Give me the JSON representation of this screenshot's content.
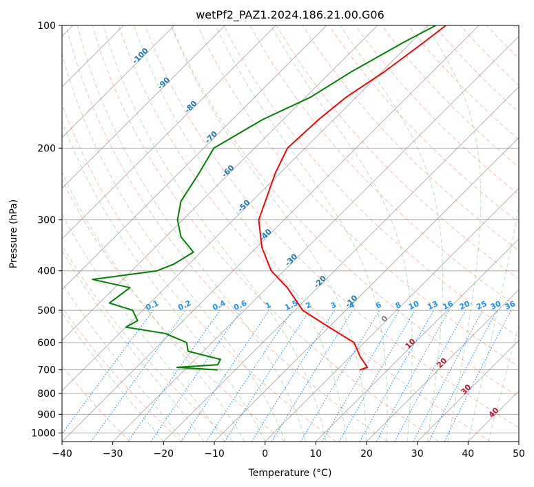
{
  "chart_data": {
    "type": "line",
    "title": "wetPf2_PAZ1.2024.186.21.00.G06",
    "xlabel": "Temperature (°C)",
    "ylabel": "Pressure (hPa)",
    "xlim": [
      -40,
      50
    ],
    "ylim": [
      1050,
      100
    ],
    "y_scale": "log",
    "grid": true,
    "x_ticks": [
      -40,
      -30,
      -20,
      -10,
      0,
      10,
      20,
      30,
      40,
      50
    ],
    "y_ticks": [
      100,
      200,
      300,
      400,
      500,
      600,
      700,
      800,
      900,
      1000
    ],
    "series": [
      {
        "role": "temperature",
        "color": "#ff0000",
        "points": [
          [
            -46.5,
            100
          ],
          [
            -47.5,
            110
          ],
          [
            -49.5,
            130
          ],
          [
            -52,
            150
          ],
          [
            -53,
            170
          ],
          [
            -53.5,
            200
          ],
          [
            -51,
            230
          ],
          [
            -45,
            300
          ],
          [
            -39,
            350
          ],
          [
            -32.5,
            400
          ],
          [
            -26,
            440
          ],
          [
            -18.5,
            500
          ],
          [
            -10,
            550
          ],
          [
            -2,
            600
          ],
          [
            2,
            650
          ],
          [
            5.5,
            690
          ],
          [
            4.5,
            700
          ]
        ]
      },
      {
        "role": "dewpoint",
        "color": "#008000",
        "points": [
          [
            -48.5,
            100
          ],
          [
            -51.5,
            110
          ],
          [
            -56,
            130
          ],
          [
            -59,
            150
          ],
          [
            -64,
            170
          ],
          [
            -68,
            200
          ],
          [
            -66,
            230
          ],
          [
            -64,
            270
          ],
          [
            -61,
            300
          ],
          [
            -57,
            330
          ],
          [
            -51.5,
            360
          ],
          [
            -53,
            385
          ],
          [
            -55,
            400
          ],
          [
            -66,
            420
          ],
          [
            -57,
            440
          ],
          [
            -58,
            480
          ],
          [
            -52,
            500
          ],
          [
            -49,
            530
          ],
          [
            -50,
            550
          ],
          [
            -41,
            570
          ],
          [
            -35,
            600
          ],
          [
            -33,
            630
          ],
          [
            -25,
            660
          ],
          [
            -24.5,
            680
          ],
          [
            -32,
            690
          ],
          [
            -23.5,
            700
          ]
        ]
      }
    ],
    "mixing_ratio_labels": [
      "0.1",
      "0.2",
      "0.4",
      "0.6",
      "1",
      "1.5",
      "2",
      "3",
      "4",
      "6",
      "8",
      "10",
      "13",
      "16",
      "20",
      "25",
      "30",
      "36"
    ],
    "mixing_ratio_values": [
      0.1,
      0.2,
      0.4,
      0.6,
      1,
      1.5,
      2,
      3,
      4,
      6,
      8,
      10,
      13,
      16,
      20,
      25,
      30,
      36
    ],
    "moist_adiabat_labels": [
      {
        "text": "-100",
        "temp": -100,
        "p": 120
      },
      {
        "text": "-90",
        "temp": -90,
        "p": 140
      },
      {
        "text": "-80",
        "temp": -80,
        "p": 160
      },
      {
        "text": "-70",
        "temp": -70,
        "p": 190
      },
      {
        "text": "-60",
        "temp": -60,
        "p": 230
      },
      {
        "text": "-50",
        "temp": -50,
        "p": 280
      },
      {
        "text": "-40",
        "temp": -40,
        "p": 330
      },
      {
        "text": "-30",
        "temp": -30,
        "p": 380
      },
      {
        "text": "-20",
        "temp": -20,
        "p": 430
      },
      {
        "text": "-10",
        "temp": -10,
        "p": 480
      },
      {
        "text": "0",
        "temp": 0,
        "p": 530
      },
      {
        "text": "10",
        "temp": 10,
        "p": 610
      },
      {
        "text": "20",
        "temp": 20,
        "p": 680
      },
      {
        "text": "30",
        "temp": 30,
        "p": 790
      },
      {
        "text": "40",
        "temp": 40,
        "p": 900
      }
    ],
    "colors": {
      "temperature": "#ff0000",
      "dewpoint": "#008000",
      "isotherm": "#7f7f7f",
      "isobar": "#aaaaaa",
      "dry_adiabat": "#ff6a40",
      "moist_adiabat": "#4caf50",
      "mixing_ratio": "#1f8fff",
      "dry_label": "#c8102e",
      "moist_label": "#1f77b4",
      "diagonal_curve": "#c8a070"
    }
  }
}
